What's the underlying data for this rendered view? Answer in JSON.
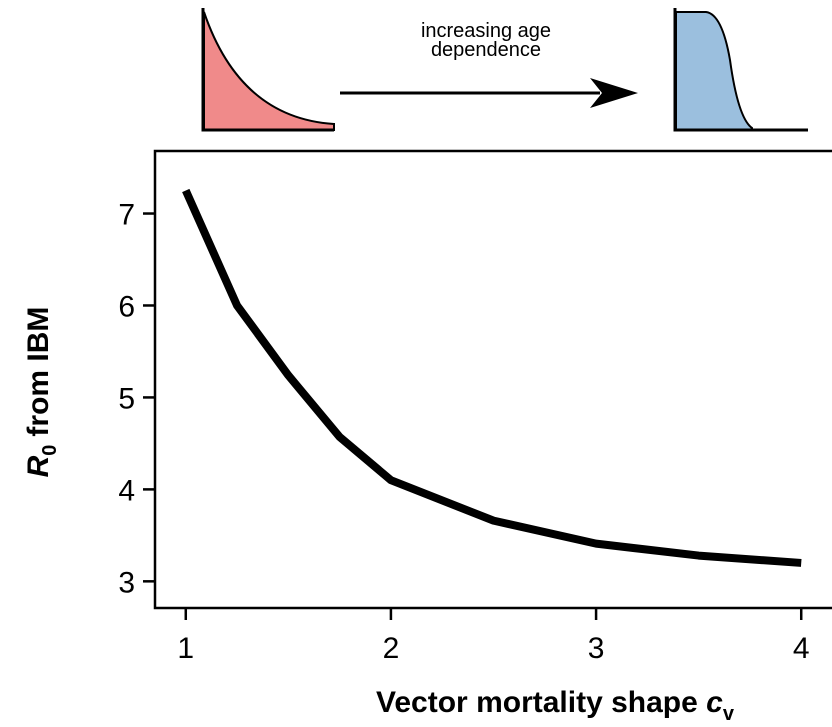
{
  "chart_data": {
    "type": "line",
    "annotation": [
      "increasing age",
      "dependence"
    ],
    "xlabel": {
      "text": "Vector mortality shape",
      "symbol": "c",
      "subscript": "v"
    },
    "ylabel": {
      "symbol": "R",
      "subscript": "0",
      "text": "from IBM"
    },
    "x": [
      1,
      1.25,
      1.5,
      1.75,
      2,
      2.5,
      3,
      3.5,
      4
    ],
    "series": [
      {
        "color": "#000000",
        "values": [
          7.25,
          6.0,
          5.24,
          4.57,
          4.1,
          3.66,
          3.41,
          3.28,
          3.2
        ]
      }
    ],
    "xlim": [
      0.85,
      4.15
    ],
    "ylim": [
      2.71,
      7.68
    ],
    "xticks": [
      1,
      2,
      3,
      4
    ],
    "yticks": [
      3,
      4,
      5,
      6,
      7
    ]
  }
}
